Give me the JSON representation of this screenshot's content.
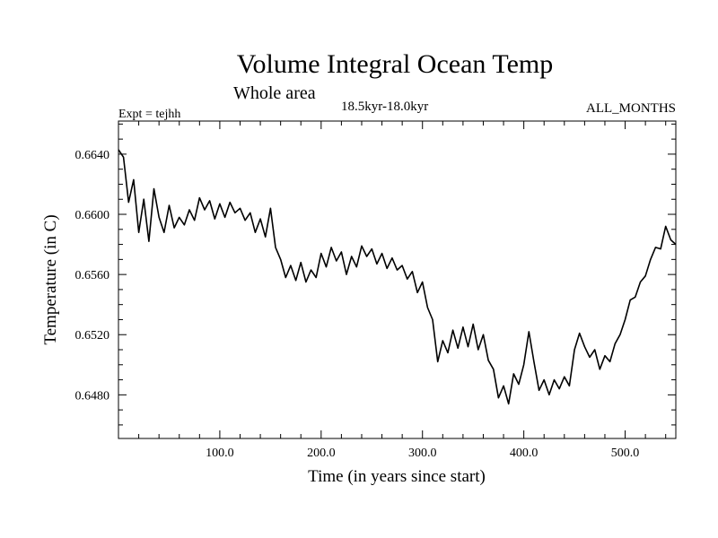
{
  "chart_data": {
    "type": "line",
    "title": "Volume Integral Ocean Temp",
    "subtitle": "Whole area",
    "period": "18.5kyr-18.0kyr",
    "experiment": "Expt = tejhh",
    "months": "ALL_MONTHS",
    "xlabel": "Time (in years since start)",
    "ylabel": "Temperature (in C)",
    "xlim": [
      0,
      550
    ],
    "ylim": [
      0.6451,
      0.6662
    ],
    "x_ticks": [
      100,
      200,
      300,
      400,
      500
    ],
    "x_tick_labels": [
      "100.0",
      "200.0",
      "300.0",
      "400.0",
      "500.0"
    ],
    "y_ticks": [
      0.648,
      0.652,
      0.656,
      0.66,
      0.664
    ],
    "y_tick_labels": [
      "0.6480",
      "0.6520",
      "0.6560",
      "0.6600",
      "0.6640"
    ],
    "series": [
      {
        "name": "Volume Integral Ocean Temp",
        "x": [
          0,
          5,
          10,
          15,
          20,
          25,
          30,
          35,
          40,
          45,
          50,
          55,
          60,
          65,
          70,
          75,
          80,
          85,
          90,
          95,
          100,
          105,
          110,
          115,
          120,
          125,
          130,
          135,
          140,
          145,
          150,
          155,
          160,
          165,
          170,
          175,
          180,
          185,
          190,
          195,
          200,
          205,
          210,
          215,
          220,
          225,
          230,
          235,
          240,
          245,
          250,
          255,
          260,
          265,
          270,
          275,
          280,
          285,
          290,
          295,
          300,
          305,
          310,
          315,
          320,
          325,
          330,
          335,
          340,
          345,
          350,
          355,
          360,
          365,
          370,
          375,
          380,
          385,
          390,
          395,
          400,
          405,
          410,
          415,
          420,
          425,
          430,
          435,
          440,
          445,
          450,
          455,
          460,
          465,
          470,
          475,
          480,
          485,
          490,
          495,
          500,
          505,
          510,
          515,
          520,
          525,
          530,
          535,
          540,
          545,
          550
        ],
        "values": [
          0.6643,
          0.6638,
          0.6608,
          0.6623,
          0.6588,
          0.661,
          0.6582,
          0.6617,
          0.6598,
          0.6588,
          0.6606,
          0.6591,
          0.6598,
          0.6593,
          0.6603,
          0.6596,
          0.6611,
          0.6603,
          0.6609,
          0.6597,
          0.6607,
          0.6598,
          0.6608,
          0.6601,
          0.6604,
          0.6596,
          0.6601,
          0.6588,
          0.6597,
          0.6585,
          0.6604,
          0.6578,
          0.657,
          0.6558,
          0.6566,
          0.6556,
          0.6568,
          0.6555,
          0.6563,
          0.6558,
          0.6574,
          0.6565,
          0.6578,
          0.6569,
          0.6575,
          0.656,
          0.6572,
          0.6565,
          0.6579,
          0.6572,
          0.6577,
          0.6567,
          0.6574,
          0.6564,
          0.6571,
          0.6563,
          0.6566,
          0.6557,
          0.6562,
          0.6548,
          0.6555,
          0.6538,
          0.653,
          0.6502,
          0.6516,
          0.6508,
          0.6523,
          0.6511,
          0.6525,
          0.6512,
          0.6527,
          0.651,
          0.652,
          0.6503,
          0.6497,
          0.6478,
          0.6486,
          0.6474,
          0.6494,
          0.6487,
          0.65,
          0.6522,
          0.6502,
          0.6483,
          0.649,
          0.648,
          0.649,
          0.6484,
          0.6492,
          0.6486,
          0.651,
          0.6521,
          0.6512,
          0.6505,
          0.651,
          0.6497,
          0.6506,
          0.6502,
          0.6514,
          0.652,
          0.653,
          0.6543,
          0.6545,
          0.6555,
          0.6559,
          0.657,
          0.6578,
          0.6577,
          0.6592,
          0.6583,
          0.658
        ]
      }
    ]
  }
}
